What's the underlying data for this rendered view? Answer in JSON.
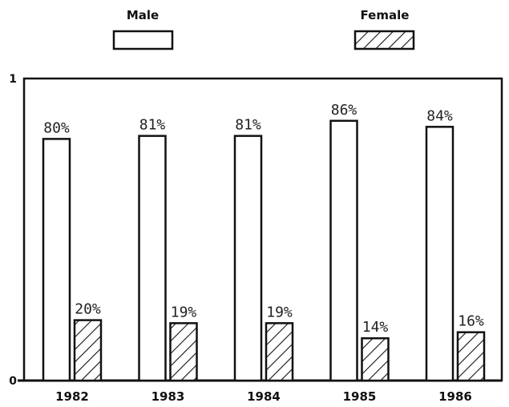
{
  "chart_data": {
    "type": "bar",
    "categories": [
      "1982",
      "1983",
      "1984",
      "1985",
      "1986"
    ],
    "series": [
      {
        "name": "Male",
        "values": [
          0.8,
          0.81,
          0.81,
          0.86,
          0.84
        ],
        "labels": [
          "80%",
          "81%",
          "81%",
          "86%",
          "84%"
        ],
        "pattern": "none"
      },
      {
        "name": "Female",
        "values": [
          0.2,
          0.19,
          0.19,
          0.14,
          0.16
        ],
        "labels": [
          "20%",
          "19%",
          "19%",
          "14%",
          "16%"
        ],
        "pattern": "diagonal-hatch"
      }
    ],
    "ylim": [
      0,
      1
    ],
    "yticks": [
      "0",
      "1"
    ],
    "legend_position": "top",
    "grid": false,
    "colors": {
      "stroke": "#111111",
      "fill": "#ffffff"
    }
  }
}
